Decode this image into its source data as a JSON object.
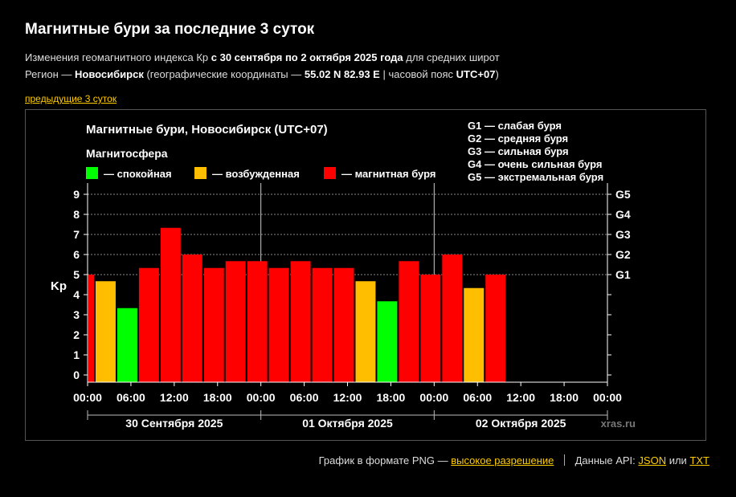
{
  "page": {
    "title": "Магнитные бури за последние 3 суток",
    "line1": {
      "prefix": "Изменения геомагнитного индекса Кр",
      "range": "с 30 сентября по 2 октября 2025 года",
      "suffix": "для средних широт"
    },
    "line2": {
      "prefix": "Регион —",
      "region": "Новосибирск",
      "coords_prefix": "(географические координаты —",
      "coords": "55.02 N 82.93 E",
      "tz_prefix": "| часовой пояс",
      "tz": "UTC+07",
      "tz_suffix": ")"
    },
    "prev_link": "предыдущие 3 суток"
  },
  "footer": {
    "png_text": "График в формате PNG —",
    "hires_link": "высокое разрешение",
    "api_text": "Данные API:",
    "json_link": "JSON",
    "or_text": "или",
    "txt_link": "TXT"
  },
  "colors": {
    "calm": "#00ff00",
    "excited": "#ffbf00",
    "storm": "#ff0000",
    "background": "#000000",
    "text": "#ffffff",
    "grid": "#888888"
  },
  "chart_data": {
    "type": "bar",
    "title": "Магнитные бури, Новосибирск (UTC+07)",
    "legend_title": "Магнитосфера",
    "legend": [
      {
        "label": "— спокойная",
        "color": "#00ff00"
      },
      {
        "label": "— возбужденная",
        "color": "#ffbf00"
      },
      {
        "label": "— магнитная буря",
        "color": "#ff0000"
      }
    ],
    "g_scale": [
      "G1 — слабая буря",
      "G2 — средняя буря",
      "G3 — сильная буря",
      "G4 — очень сильная буря",
      "G5 — экстремальная буря"
    ],
    "ylabel": "Kp",
    "ylim": [
      0,
      9
    ],
    "yticks": [
      "0",
      "1",
      "2",
      "3",
      "4",
      "5",
      "6",
      "7",
      "8",
      "9"
    ],
    "right_ticks": [
      {
        "value": 5,
        "label": "G1"
      },
      {
        "value": 6,
        "label": "G2"
      },
      {
        "value": 7,
        "label": "G3"
      },
      {
        "value": 8,
        "label": "G4"
      },
      {
        "value": 9,
        "label": "G5"
      }
    ],
    "x_hours_range": [
      0,
      72
    ],
    "xtick_labels": [
      "00:00",
      "06:00",
      "12:00",
      "18:00",
      "00:00",
      "06:00",
      "12:00",
      "18:00",
      "00:00",
      "06:00",
      "12:00",
      "18:00",
      "00:00"
    ],
    "day_labels": [
      "30 Сентября 2025",
      "01 Октября 2025",
      "02 Октября 2025"
    ],
    "bars": [
      {
        "start": -2,
        "kp": 5.0,
        "level": "storm"
      },
      {
        "start": 1,
        "kp": 4.67,
        "level": "excited"
      },
      {
        "start": 4,
        "kp": 3.33,
        "level": "calm"
      },
      {
        "start": 7,
        "kp": 5.33,
        "level": "storm"
      },
      {
        "start": 10,
        "kp": 7.33,
        "level": "storm"
      },
      {
        "start": 13,
        "kp": 6.0,
        "level": "storm"
      },
      {
        "start": 16,
        "kp": 5.33,
        "level": "storm"
      },
      {
        "start": 19,
        "kp": 5.67,
        "level": "storm"
      },
      {
        "start": 22,
        "kp": 5.67,
        "level": "storm"
      },
      {
        "start": 25,
        "kp": 5.33,
        "level": "storm"
      },
      {
        "start": 28,
        "kp": 5.67,
        "level": "storm"
      },
      {
        "start": 31,
        "kp": 5.33,
        "level": "storm"
      },
      {
        "start": 34,
        "kp": 5.33,
        "level": "storm"
      },
      {
        "start": 37,
        "kp": 4.67,
        "level": "excited"
      },
      {
        "start": 40,
        "kp": 3.67,
        "level": "calm"
      },
      {
        "start": 43,
        "kp": 5.67,
        "level": "storm"
      },
      {
        "start": 46,
        "kp": 5.0,
        "level": "storm"
      },
      {
        "start": 49,
        "kp": 6.0,
        "level": "storm"
      },
      {
        "start": 52,
        "kp": 4.33,
        "level": "excited"
      },
      {
        "start": 55,
        "kp": 5.0,
        "level": "storm"
      }
    ],
    "watermark": "xras.ru"
  }
}
